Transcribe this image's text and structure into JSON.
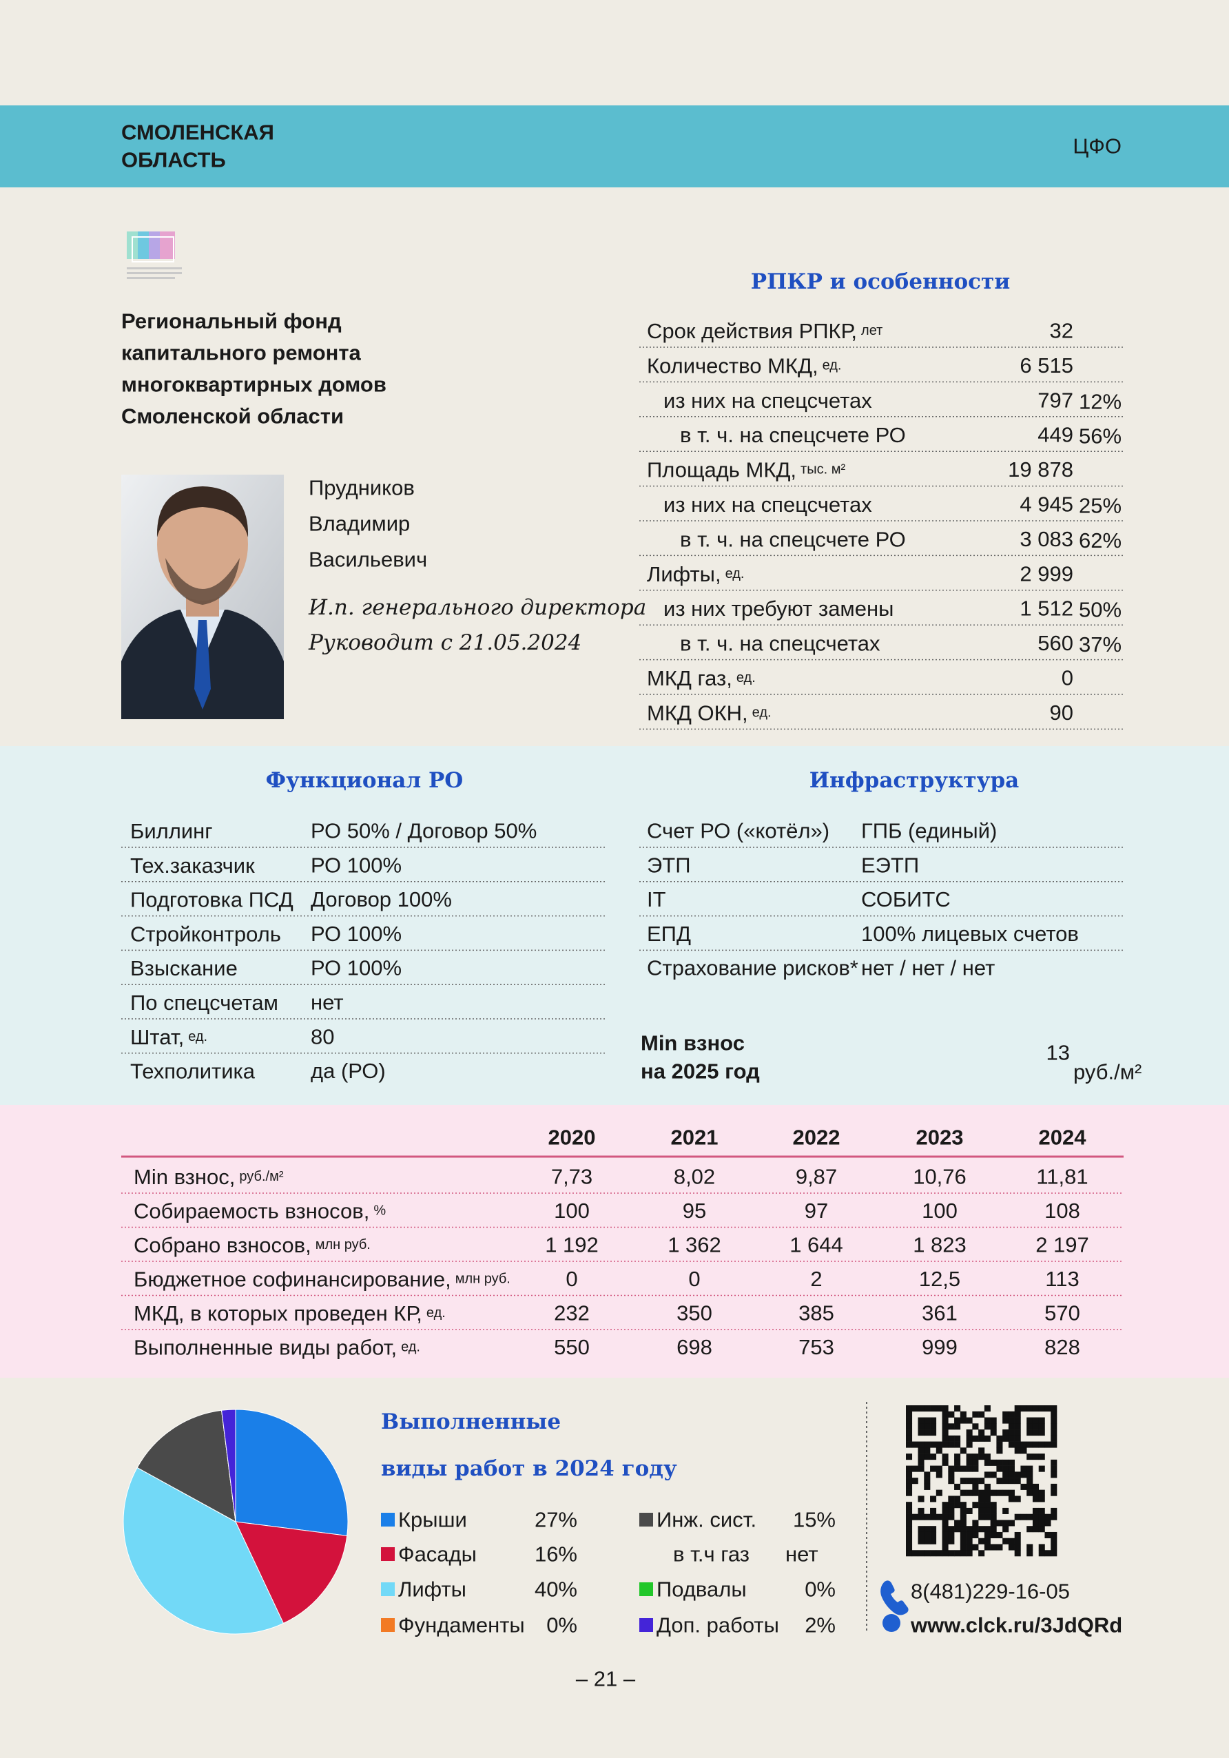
{
  "header": {
    "region": [
      "СМОЛЕНСКАЯ",
      "ОБЛАСТЬ"
    ],
    "district": "ЦФО"
  },
  "organization": {
    "name_lines": [
      "Региональный фонд",
      "капитального ремонта",
      "многоквартирных домов",
      "Смоленской области"
    ]
  },
  "person": {
    "name_lines": [
      "Прудников",
      "Владимир",
      "Васильевич"
    ],
    "position": "И.п. генерального директора",
    "since": "Руководит с 21.05.2024"
  },
  "rpkr": {
    "title": "РПКР и особенности",
    "rows": [
      {
        "label": "Срок действия РПКР,",
        "unit": "лет",
        "value": "32"
      },
      {
        "label": "Количество МКД,",
        "unit": "ед.",
        "value": "6 515",
        "children": [
          {
            "label": "из них на спецсчетах",
            "value": "797",
            "share": "12%",
            "children": [
              {
                "label": "в т. ч. на спецсчете РО",
                "value": "449",
                "share": "56%"
              }
            ]
          }
        ]
      },
      {
        "label": "Площадь МКД,",
        "unit": "тыс. м²",
        "value": "19 878",
        "children": [
          {
            "label": "из них на спецсчетах",
            "value": "4 945",
            "share": "25%",
            "children": [
              {
                "label": "в т. ч. на спецсчете РО",
                "value": "3 083",
                "share": "62%"
              }
            ]
          }
        ]
      },
      {
        "label": "Лифты,",
        "unit": "ед.",
        "value": "2 999",
        "children": [
          {
            "label": "из них требуют замены",
            "value": "1 512",
            "share": "50%",
            "children": [
              {
                "label": "в т. ч. на спецсчетах",
                "value": "560",
                "share": "37%"
              }
            ]
          }
        ]
      },
      {
        "label": "МКД газ,",
        "unit": "ед.",
        "value": "0"
      },
      {
        "label": "МКД ОКН,",
        "unit": "ед.",
        "value": "90"
      }
    ]
  },
  "functional": {
    "title": "Функционал РО",
    "rows": [
      {
        "label": "Биллинг",
        "value": "РО 50% / Договор 50%"
      },
      {
        "label": "Тех.заказчик",
        "value": "РО 100%"
      },
      {
        "label": "Подготовка ПСД",
        "value": "Договор 100%"
      },
      {
        "label": "Стройконтроль",
        "value": "РО 100%"
      },
      {
        "label": "Взыскание",
        "value": "РО 100%"
      },
      {
        "label": "По спецсчетам",
        "value": "нет"
      },
      {
        "label": "Штат,",
        "unit": "ед.",
        "value": "80"
      },
      {
        "label": "Техполитика",
        "value": "да (РО)"
      }
    ]
  },
  "infrastructure": {
    "title": "Инфраструктура",
    "rows": [
      {
        "label": "Счет РО («котёл»)",
        "value": "ГПБ (единый)"
      },
      {
        "label": "ЭТП",
        "value": "ЕЭТП"
      },
      {
        "label": "IT",
        "value": "СОБИТС"
      },
      {
        "label": "ЕПД",
        "value": "100% лицевых счетов"
      },
      {
        "label": "Страхование рисков*",
        "value": "нет / нет / нет"
      }
    ]
  },
  "min_fee": {
    "label_lines": [
      "Min взнос",
      "на 2025 год"
    ],
    "value": "13",
    "unit": "руб./м²"
  },
  "yearly_table": {
    "years": [
      "2020",
      "2021",
      "2022",
      "2023",
      "2024"
    ],
    "rows": [
      {
        "label": "Min взнос,",
        "unit": "руб./м²",
        "values": [
          "7,73",
          "8,02",
          "9,87",
          "10,76",
          "11,81"
        ]
      },
      {
        "label": "Собираемость взносов,",
        "unit": "%",
        "values": [
          "100",
          "95",
          "97",
          "100",
          "108"
        ]
      },
      {
        "label": "Собрано взносов,",
        "unit": "млн руб.",
        "values": [
          "1 192",
          "1 362",
          "1 644",
          "1 823",
          "2 197"
        ]
      },
      {
        "label": "Бюджетное софинансирование,",
        "unit": "млн руб.",
        "values": [
          "0",
          "0",
          "2",
          "12,5",
          "113"
        ]
      },
      {
        "label": "МКД, в которых проведен КР,",
        "unit": "ед.",
        "values": [
          "232",
          "350",
          "385",
          "361",
          "570"
        ]
      },
      {
        "label": "Выполненные виды работ,",
        "unit": "ед.",
        "values": [
          "550",
          "698",
          "753",
          "999",
          "828"
        ]
      }
    ]
  },
  "chart_data": {
    "type": "pie",
    "title_lines": [
      "Выполненные",
      "виды работ в 2024 году"
    ],
    "categories": [
      "Крыши",
      "Фасады",
      "Лифты",
      "Фундаменты",
      "Инж. сист.",
      "Подвалы",
      "Доп. работы"
    ],
    "values": [
      27,
      16,
      40,
      0,
      15,
      0,
      2
    ],
    "value_labels": [
      "27%",
      "16%",
      "40%",
      "0%",
      "15%",
      "0%",
      "2%"
    ],
    "colors": [
      "#1a7fe8",
      "#d3123c",
      "#72d9f7",
      "#f27a24",
      "#4a4a4a",
      "#22c72a",
      "#4424d8"
    ],
    "gas_subitem": {
      "label": "в т.ч газ",
      "value": "нет"
    }
  },
  "contacts": {
    "phone": "8(481)229-16-05",
    "url": "www.clck.ru/3JdQRd"
  },
  "page_number": "– 21 –"
}
